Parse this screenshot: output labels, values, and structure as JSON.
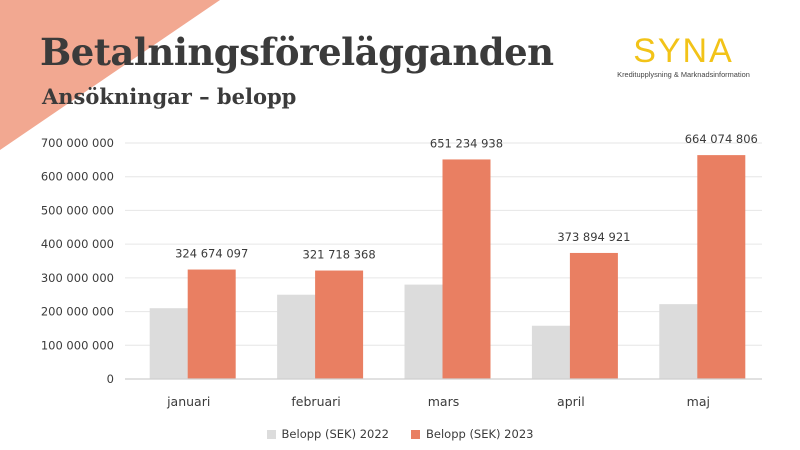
{
  "header": {
    "title": "Betalningsförelägganden",
    "subtitle": "Ansökningar – belopp"
  },
  "logo": {
    "word": "SYNA",
    "tagline": "Kreditupplysning & Marknadsinformation"
  },
  "colors": {
    "series_2022": "#dcdcdc",
    "series_2023": "#e97f62",
    "corner_accent": "#f2a891",
    "logo": "#f2c318",
    "text": "#3b3b3b",
    "grid": "#e6e6e6"
  },
  "chart_data": {
    "type": "bar",
    "title": "",
    "xlabel": "",
    "ylabel": "",
    "categories": [
      "januari",
      "februari",
      "mars",
      "april",
      "maj"
    ],
    "series": [
      {
        "name": "Belopp (SEK) 2022",
        "values": [
          210000000,
          250000000,
          280000000,
          158000000,
          222000000
        ],
        "show_labels": false
      },
      {
        "name": "Belopp (SEK) 2023",
        "values": [
          324674097,
          321718368,
          651234938,
          373894921,
          664074806
        ],
        "show_labels": true
      }
    ],
    "ylim": [
      0,
      700000000
    ],
    "yticks": [
      0,
      100000000,
      200000000,
      300000000,
      400000000,
      500000000,
      600000000,
      700000000
    ],
    "ytick_labels": [
      "0",
      "100 000 000",
      "200 000 000",
      "300 000 000",
      "400 000 000",
      "500 000 000",
      "600 000 000",
      "700 000 000"
    ],
    "data_labels_2023": [
      "324 674 097",
      "321 718 368",
      "651 234 938",
      "373 894 921",
      "664 074 806"
    ],
    "grid": true,
    "legend_position": "bottom"
  }
}
